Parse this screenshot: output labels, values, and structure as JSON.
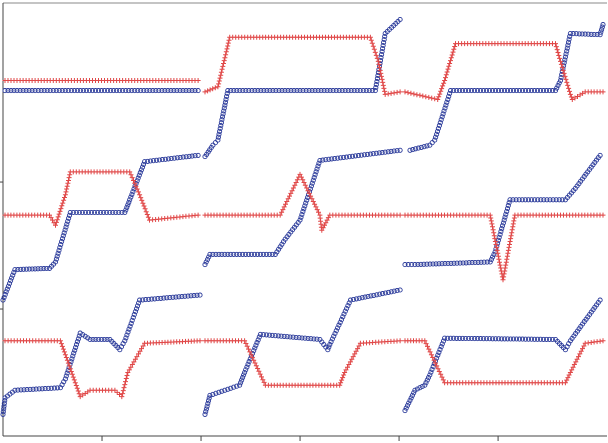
{
  "chart_data": {
    "type": "scatter",
    "title": "",
    "xlabel": "",
    "ylabel": "",
    "xlim": [
      0,
      6.1
    ],
    "ylim": [
      0,
      3.41
    ],
    "xticks": [
      1,
      2,
      3,
      4,
      5
    ],
    "yticks": [
      1,
      2
    ],
    "tick_labels_shown": false,
    "grid": false,
    "legend": "none",
    "series": [
      {
        "marker": "circle",
        "color": "#2a3a9a",
        "segments": [
          [
            [
              0.02,
              2.72
            ],
            [
              1.97,
              2.72
            ]
          ],
          [
            [
              2.04,
              2.2
            ],
            [
              2.12,
              2.29
            ],
            [
              2.17,
              2.33
            ],
            [
              2.27,
              2.72
            ],
            [
              3.76,
              2.72
            ],
            [
              3.86,
              3.17
            ],
            [
              4.01,
              3.28
            ]
          ],
          [
            [
              4.11,
              2.25
            ],
            [
              4.31,
              2.29
            ],
            [
              4.36,
              2.33
            ],
            [
              4.52,
              2.72
            ],
            [
              5.58,
              2.72
            ],
            [
              5.63,
              2.8
            ],
            [
              5.73,
              3.17
            ],
            [
              6.03,
              3.16
            ],
            [
              6.06,
              3.24
            ]
          ],
          [
            [
              0.0,
              1.07
            ],
            [
              0.12,
              1.31
            ],
            [
              0.47,
              1.32
            ],
            [
              0.53,
              1.37
            ],
            [
              0.68,
              1.76
            ],
            [
              1.23,
              1.76
            ],
            [
              1.28,
              1.86
            ],
            [
              1.43,
              2.16
            ],
            [
              1.97,
              2.21
            ]
          ],
          [
            [
              2.04,
              1.35
            ],
            [
              2.09,
              1.43
            ],
            [
              2.75,
              1.43
            ],
            [
              2.85,
              1.55
            ],
            [
              3.0,
              1.7
            ],
            [
              3.2,
              2.17
            ],
            [
              4.01,
              2.25
            ]
          ],
          [
            [
              4.06,
              1.35
            ],
            [
              4.16,
              1.35
            ],
            [
              4.92,
              1.37
            ],
            [
              4.97,
              1.45
            ],
            [
              5.12,
              1.86
            ],
            [
              5.68,
              1.86
            ],
            [
              5.78,
              1.95
            ],
            [
              6.03,
              2.21
            ]
          ],
          [
            [
              0.0,
              0.17
            ],
            [
              0.02,
              0.3
            ],
            [
              0.12,
              0.36
            ],
            [
              0.58,
              0.38
            ],
            [
              0.63,
              0.45
            ],
            [
              0.78,
              0.81
            ],
            [
              0.88,
              0.76
            ],
            [
              1.08,
              0.76
            ],
            [
              1.18,
              0.68
            ],
            [
              1.23,
              0.75
            ],
            [
              1.38,
              1.07
            ],
            [
              1.99,
              1.11
            ]
          ],
          [
            [
              2.04,
              0.17
            ],
            [
              2.09,
              0.32
            ],
            [
              2.39,
              0.4
            ],
            [
              2.44,
              0.5
            ],
            [
              2.6,
              0.8
            ],
            [
              3.2,
              0.76
            ],
            [
              3.28,
              0.68
            ],
            [
              3.3,
              0.72
            ],
            [
              3.51,
              1.07
            ],
            [
              4.01,
              1.15
            ]
          ],
          [
            [
              4.06,
              0.2
            ],
            [
              4.16,
              0.36
            ],
            [
              4.26,
              0.4
            ],
            [
              4.31,
              0.48
            ],
            [
              4.46,
              0.77
            ],
            [
              5.58,
              0.76
            ],
            [
              5.68,
              0.68
            ],
            [
              5.73,
              0.75
            ],
            [
              6.03,
              1.07
            ]
          ]
        ]
      },
      {
        "marker": "plus",
        "color": "#e04848",
        "segments": [
          [
            [
              0.02,
              2.8
            ],
            [
              1.97,
              2.8
            ]
          ],
          [
            [
              2.04,
              2.71
            ],
            [
              2.17,
              2.75
            ],
            [
              2.29,
              3.14
            ],
            [
              3.71,
              3.14
            ],
            [
              3.79,
              2.95
            ],
            [
              3.86,
              2.69
            ],
            [
              4.01,
              2.71
            ]
          ],
          [
            [
              4.06,
              2.71
            ],
            [
              4.39,
              2.65
            ],
            [
              4.46,
              2.8
            ],
            [
              4.57,
              3.09
            ],
            [
              5.58,
              3.09
            ],
            [
              5.63,
              2.95
            ],
            [
              5.73,
              2.69
            ],
            [
              5.75,
              2.65
            ],
            [
              5.88,
              2.71
            ],
            [
              6.06,
              2.71
            ]
          ],
          [
            [
              0.02,
              1.74
            ],
            [
              0.47,
              1.74
            ],
            [
              0.53,
              1.66
            ],
            [
              0.63,
              1.9
            ],
            [
              0.68,
              2.08
            ],
            [
              1.28,
              2.08
            ],
            [
              1.38,
              1.9
            ],
            [
              1.48,
              1.7
            ],
            [
              1.97,
              1.74
            ]
          ],
          [
            [
              2.04,
              1.74
            ],
            [
              2.8,
              1.74
            ],
            [
              3.0,
              2.06
            ],
            [
              3.2,
              1.74
            ],
            [
              3.22,
              1.62
            ],
            [
              3.3,
              1.74
            ],
            [
              4.01,
              1.74
            ]
          ],
          [
            [
              4.06,
              1.74
            ],
            [
              4.92,
              1.74
            ],
            [
              5.05,
              1.23
            ],
            [
              5.17,
              1.74
            ],
            [
              6.06,
              1.74
            ]
          ],
          [
            [
              0.02,
              0.75
            ],
            [
              0.58,
              0.75
            ],
            [
              0.78,
              0.31
            ],
            [
              0.88,
              0.36
            ],
            [
              1.13,
              0.36
            ],
            [
              1.2,
              0.31
            ],
            [
              1.26,
              0.5
            ],
            [
              1.43,
              0.73
            ],
            [
              1.99,
              0.75
            ]
          ],
          [
            [
              2.04,
              0.75
            ],
            [
              2.44,
              0.75
            ],
            [
              2.65,
              0.4
            ],
            [
              3.4,
              0.4
            ],
            [
              3.45,
              0.5
            ],
            [
              3.61,
              0.73
            ],
            [
              4.01,
              0.75
            ]
          ],
          [
            [
              4.06,
              0.75
            ],
            [
              4.26,
              0.75
            ],
            [
              4.46,
              0.42
            ],
            [
              5.68,
              0.42
            ],
            [
              5.73,
              0.5
            ],
            [
              5.88,
              0.73
            ],
            [
              6.06,
              0.75
            ]
          ]
        ]
      }
    ]
  }
}
